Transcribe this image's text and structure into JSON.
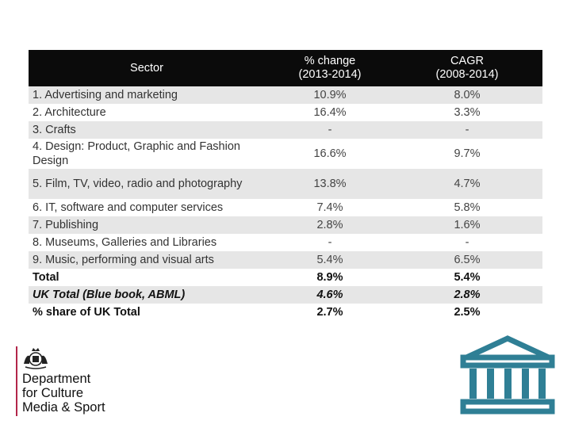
{
  "table": {
    "headers": {
      "sector": "Sector",
      "change_line1": "% change",
      "change_line2": "(2013-2014)",
      "cagr_line1": "CAGR",
      "cagr_line2": "(2008-2014)"
    },
    "rows": [
      {
        "sector": "1. Advertising and marketing",
        "change": "10.9%",
        "cagr": "8.0%"
      },
      {
        "sector": "2. Architecture",
        "change": "16.4%",
        "cagr": "3.3%"
      },
      {
        "sector": "3. Crafts",
        "change": "-",
        "cagr": "-"
      },
      {
        "sector": "4. Design: Product, Graphic and Fashion Design",
        "change": "16.6%",
        "cagr": "9.7%"
      },
      {
        "sector": "5. Film, TV, video, radio and photography",
        "change": "13.8%",
        "cagr": "4.7%"
      },
      {
        "sector": "6. IT, software and computer services",
        "change": "7.4%",
        "cagr": "5.8%"
      },
      {
        "sector": "7. Publishing",
        "change": "2.8%",
        "cagr": "1.6%"
      },
      {
        "sector": "8. Museums, Galleries and Libraries",
        "change": "-",
        "cagr": "-"
      },
      {
        "sector": "9. Music, performing and visual arts",
        "change": "5.4%",
        "cagr": "6.5%"
      },
      {
        "sector": "Total",
        "change": "8.9%",
        "cagr": "5.4%"
      },
      {
        "sector": "UK Total (Blue book, ABML)",
        "change": "4.6%",
        "cagr": "2.8%"
      },
      {
        "sector": "% share of UK Total",
        "change": "2.7%",
        "cagr": "2.5%"
      }
    ]
  },
  "logo": {
    "line1": "Department",
    "line2": "for Culture",
    "line3": "Media & Sport",
    "icon": "royal-crest-icon",
    "accent_color": "#b2264a"
  },
  "decor": {
    "icon": "museum-building-icon",
    "color": "#2f7f95"
  }
}
